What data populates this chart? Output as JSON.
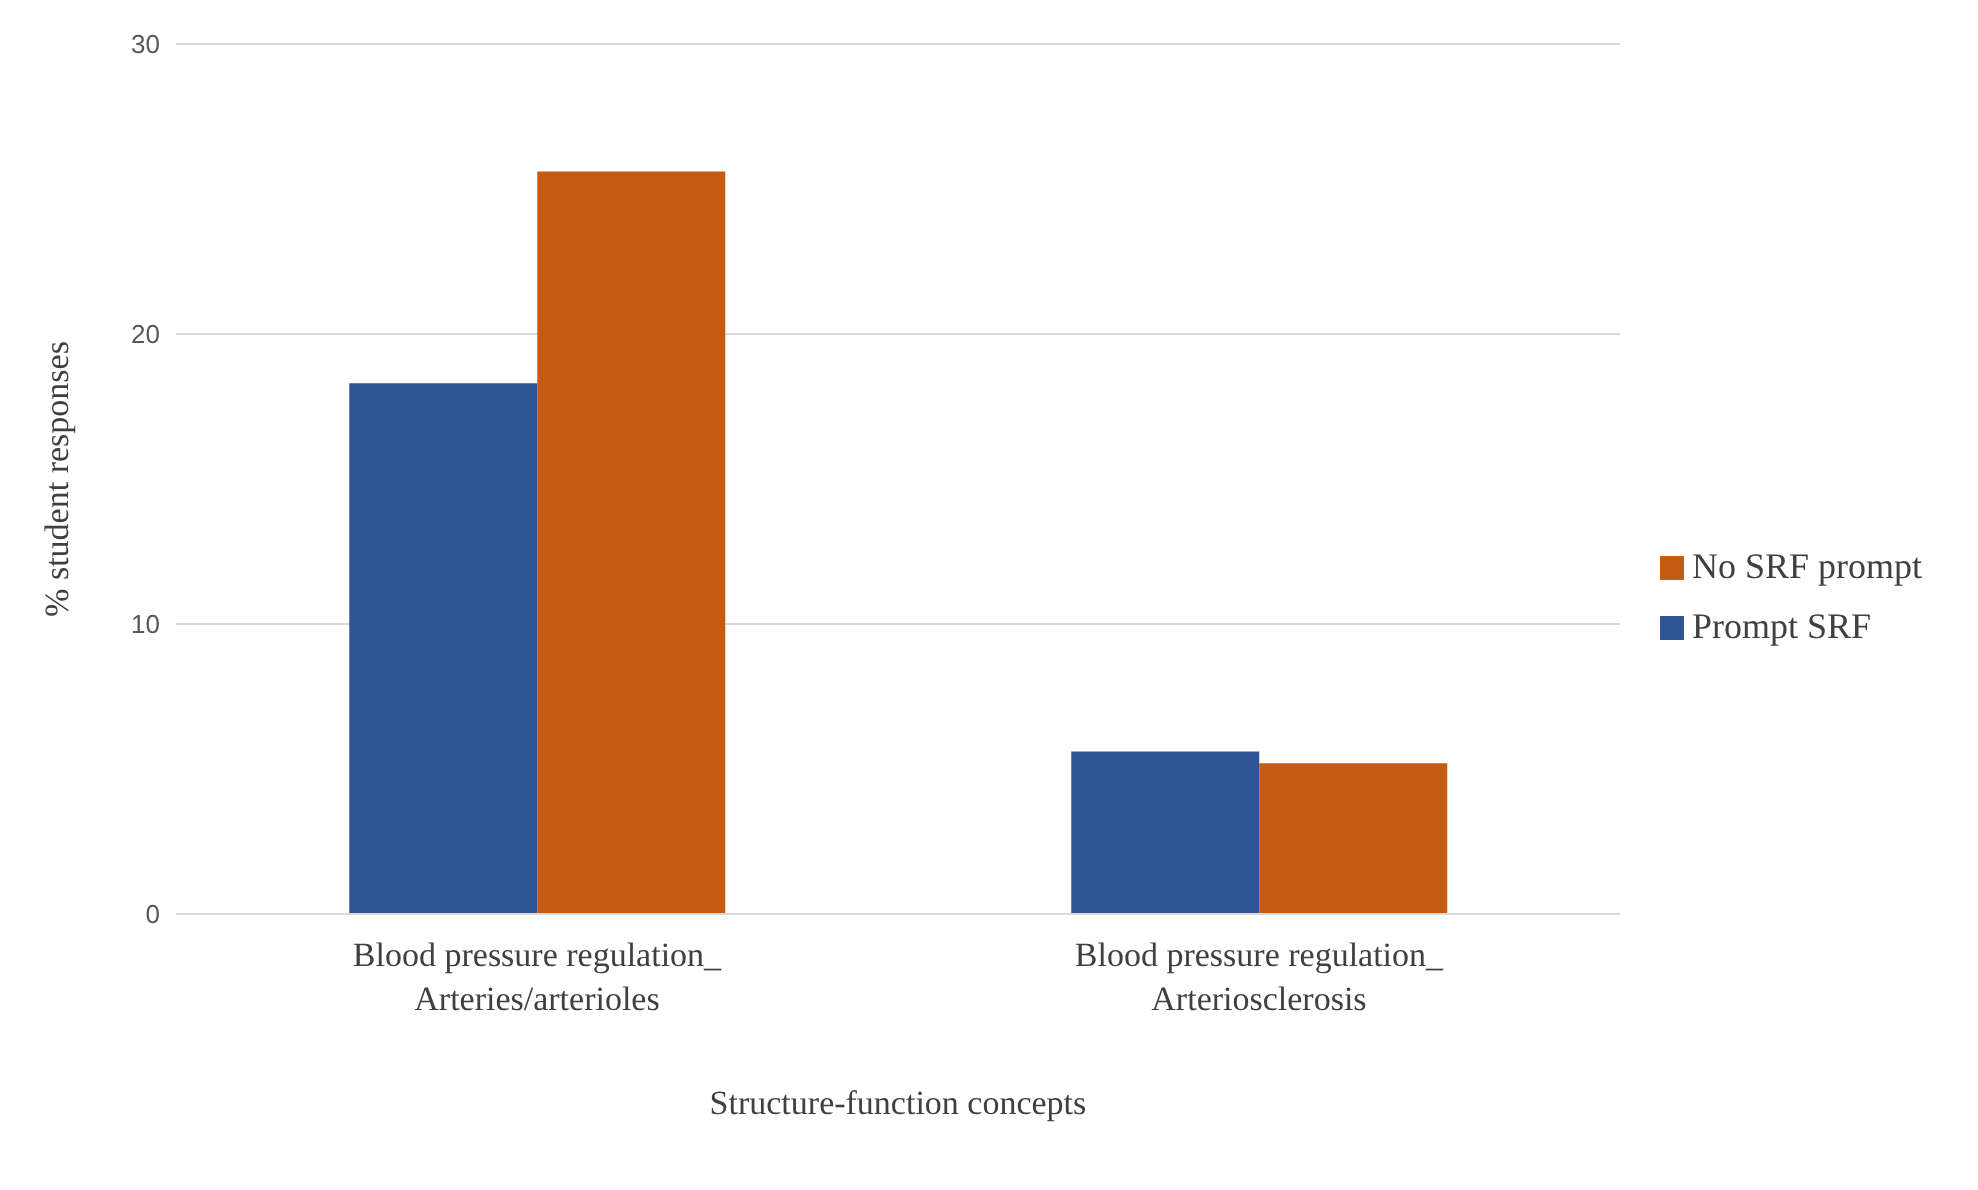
{
  "chart_data": {
    "type": "bar",
    "xlabel": "Structure-function  concepts",
    "ylabel": "% student  responses",
    "categories": [
      "Blood pressure regulation_\nArteries/arterioles",
      "Blood pressure regulation_\nArteriosclerosis"
    ],
    "series": [
      {
        "name": "Prompt SRF",
        "color": "#2f5597",
        "values": [
          18.3,
          5.6
        ]
      },
      {
        "name": "No SRF prompt",
        "color": "#c55a11",
        "values": [
          25.6,
          5.2
        ]
      }
    ],
    "ylim": [
      0,
      30
    ],
    "yticks": [
      0,
      10,
      20,
      30
    ],
    "grid": "y",
    "legend": "right"
  }
}
